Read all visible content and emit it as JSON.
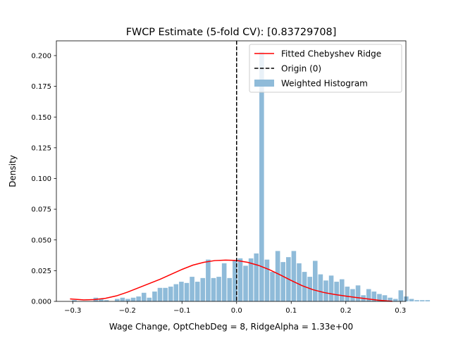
{
  "chart_data": {
    "type": "bar",
    "title": "FWCP Estimate (5-fold CV): [0.83729708]",
    "xlabel": "Wage Change, OptChebDeg = 8, RidgeAlpha = 1.33e+00",
    "ylabel": "Density",
    "xlim": [
      -0.33,
      0.31
    ],
    "ylim": [
      0,
      0.212
    ],
    "xticks": [
      {
        "value": -0.3,
        "label": "−0.3"
      },
      {
        "value": -0.2,
        "label": "−0.2"
      },
      {
        "value": -0.1,
        "label": "−0.1"
      },
      {
        "value": 0.0,
        "label": "0.0"
      },
      {
        "value": 0.1,
        "label": "0.1"
      },
      {
        "value": 0.2,
        "label": "0.2"
      },
      {
        "value": 0.3,
        "label": "0.3"
      }
    ],
    "yticks": [
      {
        "value": 0.0,
        "label": "0.000"
      },
      {
        "value": 0.025,
        "label": "0.025"
      },
      {
        "value": 0.05,
        "label": "0.050"
      },
      {
        "value": 0.075,
        "label": "0.075"
      },
      {
        "value": 0.1,
        "label": "0.100"
      },
      {
        "value": 0.125,
        "label": "0.125"
      },
      {
        "value": 0.15,
        "label": "0.150"
      },
      {
        "value": 0.175,
        "label": "0.175"
      },
      {
        "value": 0.2,
        "label": "0.200"
      }
    ],
    "histogram": {
      "name": "Weighted Histogram",
      "color": "#8fbbd9",
      "bin_width": 0.0098,
      "bin_start": -0.302,
      "values": [
        0.001,
        0.0,
        0.0,
        0.0,
        0.003,
        0.002,
        0.001,
        0.0,
        0.002,
        0.003,
        0.002,
        0.003,
        0.004,
        0.007,
        0.003,
        0.008,
        0.011,
        0.011,
        0.012,
        0.014,
        0.016,
        0.015,
        0.02,
        0.016,
        0.019,
        0.034,
        0.019,
        0.02,
        0.031,
        0.019,
        0.033,
        0.035,
        0.029,
        0.035,
        0.039,
        0.203,
        0.034,
        0.024,
        0.041,
        0.032,
        0.036,
        0.041,
        0.031,
        0.024,
        0.02,
        0.033,
        0.022,
        0.017,
        0.021,
        0.016,
        0.018,
        0.012,
        0.01,
        0.013,
        0.005,
        0.01,
        0.008,
        0.006,
        0.005,
        0.003,
        0.002,
        0.009,
        0.004,
        0.002,
        0.001,
        0.001,
        0.001,
        0.0
      ]
    },
    "curve": {
      "name": "Fitted Chebyshev Ridge",
      "color": "#ff0000",
      "x": [
        -0.305,
        -0.28,
        -0.26,
        -0.24,
        -0.22,
        -0.2,
        -0.18,
        -0.16,
        -0.14,
        -0.12,
        -0.1,
        -0.08,
        -0.06,
        -0.04,
        -0.02,
        0.0,
        0.02,
        0.04,
        0.06,
        0.08,
        0.1,
        0.12,
        0.14,
        0.16,
        0.18,
        0.2,
        0.22,
        0.24,
        0.26,
        0.285
      ],
      "y": [
        0.002,
        0.0012,
        0.0015,
        0.0025,
        0.0045,
        0.0075,
        0.011,
        0.0145,
        0.018,
        0.022,
        0.026,
        0.0295,
        0.0318,
        0.0332,
        0.0336,
        0.0333,
        0.0318,
        0.0293,
        0.0258,
        0.0215,
        0.017,
        0.0128,
        0.0095,
        0.0072,
        0.0056,
        0.0043,
        0.0031,
        0.002,
        0.0009,
        0.0001
      ]
    },
    "vline": {
      "name": "Origin (0)",
      "x": 0.0,
      "color": "#000000"
    },
    "legend": {
      "placement": "upper right",
      "entries": [
        "Fitted Chebyshev Ridge",
        "Origin (0)",
        "Weighted Histogram"
      ]
    }
  }
}
